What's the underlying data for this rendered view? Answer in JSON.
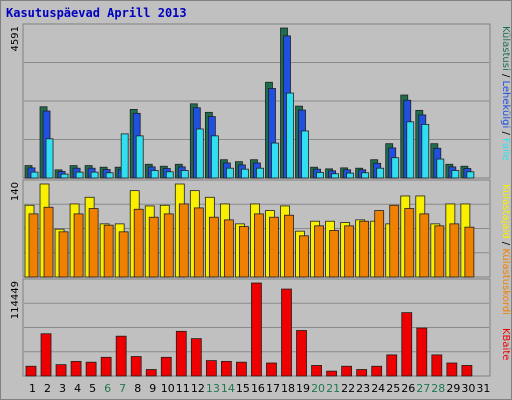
{
  "title": "Kasutuspäevad Aprill 2013",
  "colors": {
    "panel_bg": "#c0c0c0",
    "text_blue": "#0000c0",
    "kulastusi": "#1e6e4e",
    "lehekulgi": "#2050e0",
    "faile": "#30e0f0",
    "kulastajaid": "#f8f000",
    "kulastuskordi": "#f08000",
    "kbaite": "#ee0000",
    "weekend_day": "#1e7a4e",
    "weekday": "#000000"
  },
  "right_labels": {
    "top": [
      "Külastusi",
      "Lehekülgi",
      "Faile"
    ],
    "middle": [
      "Külastajaid",
      "Külastuskordi"
    ],
    "bottom": [
      "KBaite"
    ]
  },
  "chart_data": [
    {
      "type": "bar",
      "panel": "top",
      "y_max_label": "4591",
      "ylim": [
        0,
        4591
      ],
      "categories": [
        "1",
        "2",
        "3",
        "4",
        "5",
        "6",
        "7",
        "8",
        "9",
        "10",
        "11",
        "12",
        "13",
        "14",
        "15",
        "16",
        "17",
        "18",
        "19",
        "20",
        "21",
        "22",
        "23",
        "24",
        "25",
        "26",
        "27",
        "28",
        "29",
        "30",
        "31"
      ],
      "weekend_days": [
        6,
        7,
        13,
        14,
        20,
        21,
        27,
        28
      ],
      "series": [
        {
          "name": "Külastusi",
          "values": [
            380,
            2180,
            250,
            380,
            380,
            330,
            330,
            2100,
            420,
            360,
            420,
            2270,
            2010,
            560,
            500,
            560,
            2930,
            4591,
            2200,
            330,
            280,
            310,
            300,
            560,
            1050,
            2540,
            2070,
            1050,
            420,
            360,
            0
          ]
        },
        {
          "name": "Lehekülgi",
          "values": [
            310,
            2050,
            200,
            300,
            300,
            260,
            260,
            1980,
            340,
            290,
            340,
            2150,
            1880,
            460,
            400,
            460,
            2740,
            4350,
            2080,
            270,
            220,
            250,
            250,
            450,
            920,
            2380,
            1930,
            910,
            340,
            290,
            0
          ]
        },
        {
          "name": "Faile",
          "values": [
            180,
            1200,
            120,
            180,
            180,
            160,
            1350,
            1290,
            230,
            190,
            230,
            1500,
            1290,
            300,
            270,
            300,
            1070,
            2600,
            1440,
            170,
            130,
            150,
            160,
            300,
            620,
            1720,
            1640,
            580,
            230,
            190,
            0
          ]
        }
      ]
    },
    {
      "type": "bar",
      "panel": "middle",
      "y_max_label": "140",
      "ylim": [
        0,
        140
      ],
      "categories": [
        "1",
        "2",
        "3",
        "4",
        "5",
        "6",
        "7",
        "8",
        "9",
        "10",
        "11",
        "12",
        "13",
        "14",
        "15",
        "16",
        "17",
        "18",
        "19",
        "20",
        "21",
        "22",
        "23",
        "24",
        "25",
        "26",
        "27",
        "28",
        "29",
        "30",
        "31"
      ],
      "series": [
        {
          "name": "Külastajaid",
          "values": [
            108,
            140,
            72,
            110,
            120,
            80,
            80,
            130,
            107,
            108,
            140,
            130,
            120,
            110,
            80,
            110,
            100,
            107,
            69,
            84,
            84,
            82,
            86,
            84,
            80,
            122,
            122,
            80,
            110,
            110,
            0
          ]
        },
        {
          "name": "Külastuskordi",
          "values": [
            95,
            105,
            68,
            95,
            103,
            78,
            68,
            102,
            90,
            95,
            110,
            104,
            90,
            86,
            76,
            95,
            90,
            93,
            62,
            77,
            70,
            77,
            84,
            100,
            108,
            103,
            95,
            77,
            80,
            75,
            0
          ]
        }
      ]
    },
    {
      "type": "bar",
      "panel": "bottom",
      "y_max_label": "114449",
      "ylim": [
        0,
        114449
      ],
      "categories": [
        "1",
        "2",
        "3",
        "4",
        "5",
        "6",
        "7",
        "8",
        "9",
        "10",
        "11",
        "12",
        "13",
        "14",
        "15",
        "16",
        "17",
        "18",
        "19",
        "20",
        "21",
        "22",
        "23",
        "24",
        "25",
        "26",
        "27",
        "28",
        "29",
        "30",
        "31"
      ],
      "series": [
        {
          "name": "KBaite",
          "values": [
            12000,
            52000,
            14000,
            18000,
            17000,
            23000,
            49000,
            24000,
            8000,
            23000,
            55000,
            46000,
            19000,
            18000,
            17000,
            114449,
            16000,
            107000,
            56000,
            13000,
            6000,
            12000,
            8000,
            12000,
            26000,
            78000,
            59000,
            26000,
            16000,
            13000,
            0
          ]
        }
      ]
    }
  ]
}
